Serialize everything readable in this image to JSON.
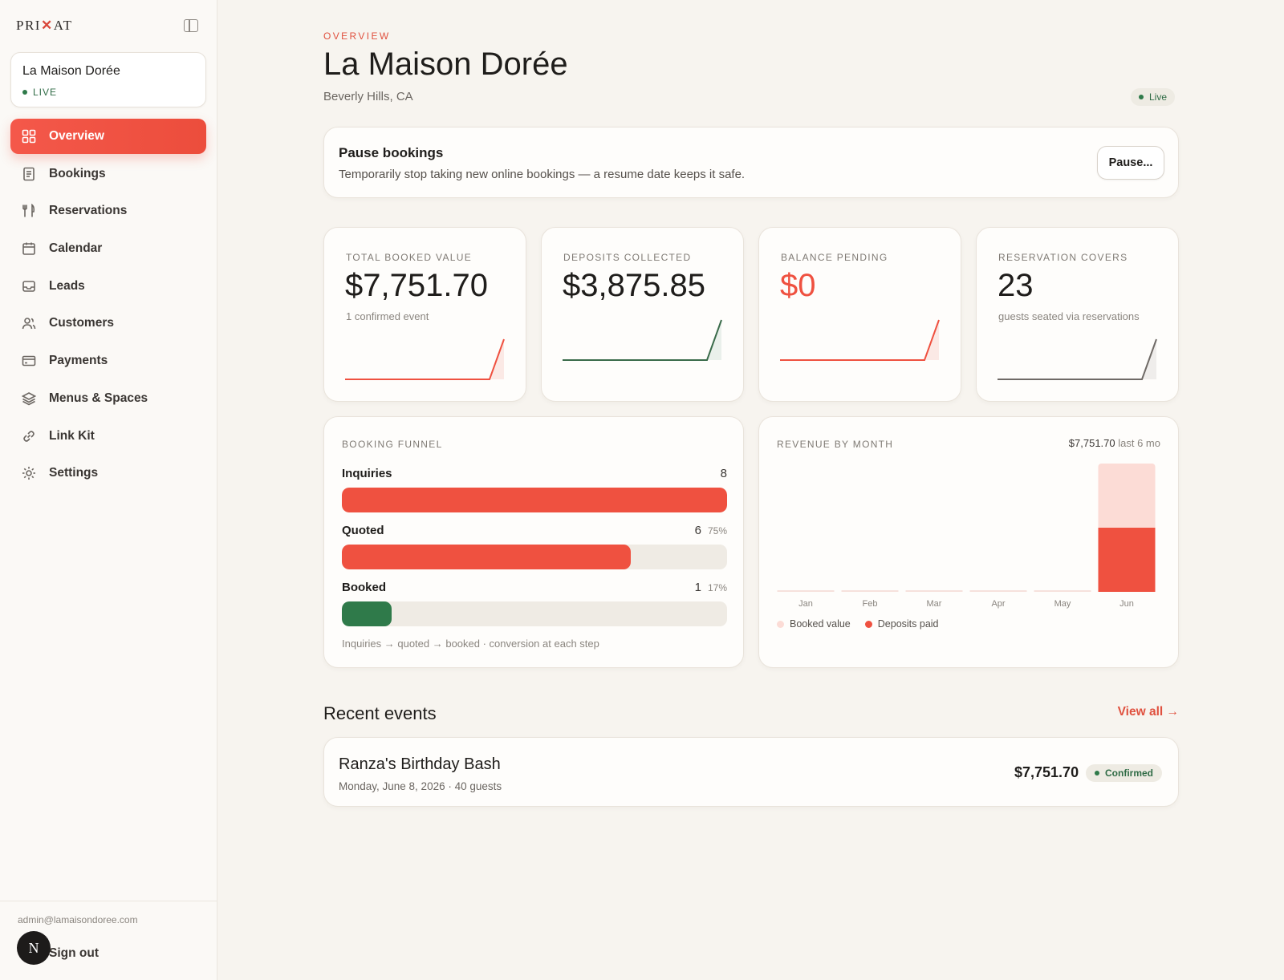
{
  "brand": {
    "logo_left": "PRI",
    "logo_mark": "✕",
    "logo_right": "AT"
  },
  "venue": {
    "name": "La Maison Dorée",
    "status": "LIVE"
  },
  "nav": [
    {
      "label": "Overview",
      "icon": "grid-icon",
      "active": true
    },
    {
      "label": "Bookings",
      "icon": "receipt-icon"
    },
    {
      "label": "Reservations",
      "icon": "utensils-icon"
    },
    {
      "label": "Calendar",
      "icon": "calendar-icon"
    },
    {
      "label": "Leads",
      "icon": "inbox-icon"
    },
    {
      "label": "Customers",
      "icon": "users-icon"
    },
    {
      "label": "Payments",
      "icon": "credit-card-icon"
    },
    {
      "label": "Menus & Spaces",
      "icon": "layers-icon"
    },
    {
      "label": "Link Kit",
      "icon": "link-icon"
    },
    {
      "label": "Settings",
      "icon": "gear-icon"
    }
  ],
  "user": {
    "email": "admin@lamaisondoree.com",
    "avatar_initial": "N",
    "signout": "Sign out"
  },
  "header": {
    "eyebrow": "OVERVIEW",
    "title": "La Maison Dorée",
    "location": "Beverly Hills, CA",
    "status": "Live"
  },
  "pause": {
    "title": "Pause bookings",
    "description": "Temporarily stop taking new online bookings — a resume date keeps it safe.",
    "button": "Pause..."
  },
  "kpis": [
    {
      "label": "TOTAL BOOKED VALUE",
      "value": "$7,751.70",
      "sub": "1 confirmed event",
      "color": "#ef5140"
    },
    {
      "label": "DEPOSITS COLLECTED",
      "value": "$3,875.85",
      "sub": "",
      "color": "#3a6b4a"
    },
    {
      "label": "BALANCE PENDING",
      "value": "$0",
      "sub": "",
      "color": "#ef5140"
    },
    {
      "label": "RESERVATION COVERS",
      "value": "23",
      "sub": "guests seated via reservations",
      "color": "#6f6a66"
    }
  ],
  "funnel": {
    "label": "BOOKING FUNNEL",
    "rows": [
      {
        "name": "Inquiries",
        "count": "8",
        "pct": "",
        "fraction": 1.0,
        "color": "#ef5140"
      },
      {
        "name": "Quoted",
        "count": "6",
        "pct": "75%",
        "fraction": 0.75,
        "color": "#ef5140"
      },
      {
        "name": "Booked",
        "count": "1",
        "pct": "17%",
        "fraction": 0.13,
        "color": "#2f7a4a"
      }
    ],
    "note": "Inquiries → quoted → booked · conversion at each step"
  },
  "revenue": {
    "label": "REVENUE BY MONTH",
    "total": "$7,751.70",
    "total_suffix": "last 6 mo",
    "legend": [
      {
        "label": "Booked value",
        "color": "#fcdcd6"
      },
      {
        "label": "Deposits paid",
        "color": "#ef5140"
      }
    ]
  },
  "chart_data": {
    "type": "bar",
    "categories": [
      "Jan",
      "Feb",
      "Mar",
      "Apr",
      "May",
      "Jun"
    ],
    "series": [
      {
        "name": "Booked value",
        "values": [
          0,
          0,
          0,
          0,
          0,
          7751.7
        ]
      },
      {
        "name": "Deposits paid",
        "values": [
          0,
          0,
          0,
          0,
          0,
          3875.85
        ]
      }
    ],
    "ylim": [
      0,
      7751.7
    ]
  },
  "recent": {
    "title": "Recent events",
    "view_all": "View all →",
    "events": [
      {
        "name": "Ranza's Birthday Bash",
        "meta": "Monday, June 8, 2026 · 40 guests",
        "amount": "$7,751.70",
        "status": "Confirmed"
      }
    ]
  }
}
